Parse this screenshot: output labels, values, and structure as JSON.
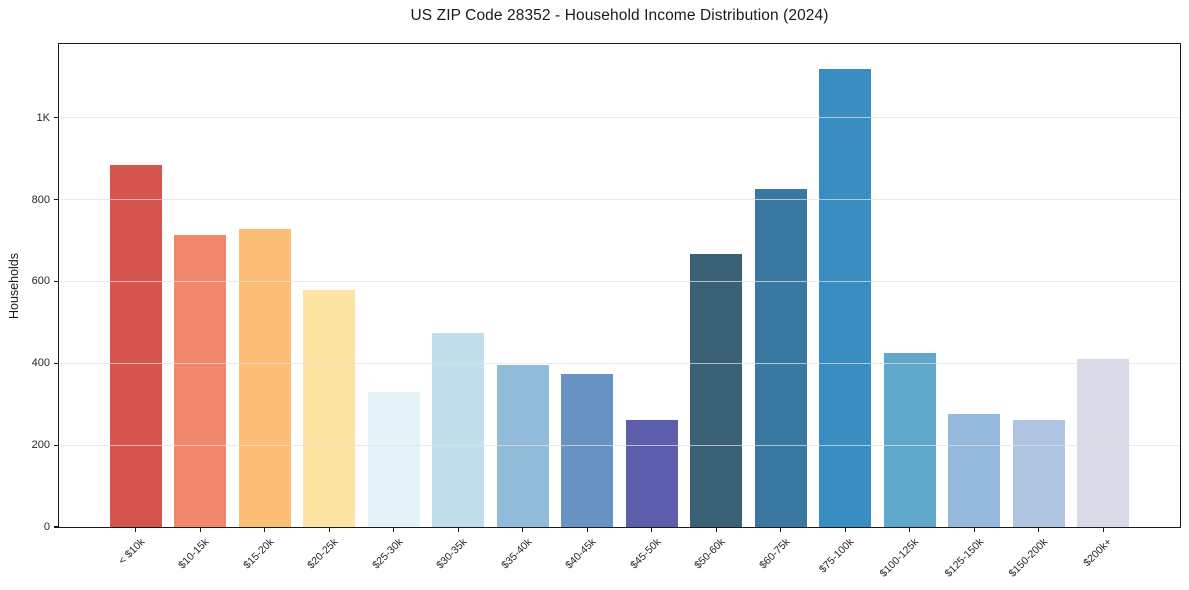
{
  "chart_data": {
    "type": "bar",
    "title": "US ZIP Code 28352 - Household Income Distribution (2024)",
    "xlabel": "",
    "ylabel": "Households",
    "categories": [
      "< $10k",
      "$10-15k",
      "$15-20k",
      "$20-25k",
      "$25-30k",
      "$30-35k",
      "$35-40k",
      "$40-45k",
      "$45-50k",
      "$50-60k",
      "$60-75k",
      "$75-100k",
      "$100-125k",
      "$125-150k",
      "$150-200k",
      "$200k+"
    ],
    "values": [
      885,
      713,
      728,
      580,
      331,
      473,
      395,
      374,
      262,
      668,
      826,
      1119,
      425,
      275,
      262,
      410
    ],
    "bar_colors": [
      "#d6544e",
      "#f0876a",
      "#fcbd77",
      "#fde4a2",
      "#e4f3f7",
      "#c0dfeb",
      "#92bbd9",
      "#6a93c5",
      "#5c5dab",
      "#3a6076",
      "#3979a1",
      "#3a8dc0",
      "#60a7cc",
      "#94b9dc",
      "#aec4e0",
      "#d8dae8"
    ],
    "ylim": [
      0,
      1180
    ],
    "yticks": [
      {
        "value": 0,
        "label": "0"
      },
      {
        "value": 200,
        "label": "200"
      },
      {
        "value": 400,
        "label": "400"
      },
      {
        "value": 600,
        "label": "600"
      },
      {
        "value": 800,
        "label": "800"
      },
      {
        "value": 1000,
        "label": "1K"
      }
    ],
    "xtick_rotation_deg": 45,
    "grid": "horizontal-only",
    "legend": "none",
    "background": "#ffffff",
    "axis_color": "#1a1a1a",
    "grid_color": "#e0e0e0",
    "tick_label_color": "#262626"
  }
}
